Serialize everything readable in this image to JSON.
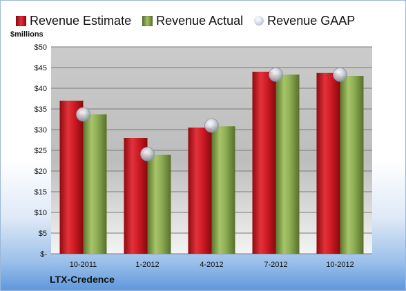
{
  "legend": {
    "estimate": "Revenue Estimate",
    "actual": "Revenue Actual",
    "gaap": "Revenue GAAP"
  },
  "unit_label": "$millions",
  "company_label": "LTX-Credence",
  "colors": {
    "estimate": "#c0101a",
    "actual": "#7d9a43",
    "gaap": "#c8cdd6"
  },
  "chart_data": {
    "type": "bar",
    "categories": [
      "10-2011",
      "1-2012",
      "4-2012",
      "7-2012",
      "10-2012"
    ],
    "series": [
      {
        "name": "Revenue Estimate",
        "values": [
          37.0,
          28.0,
          30.5,
          44.0,
          43.7
        ]
      },
      {
        "name": "Revenue Actual",
        "values": [
          33.7,
          23.9,
          30.8,
          43.3,
          43.0
        ]
      },
      {
        "name": "Revenue GAAP",
        "values": [
          33.7,
          24.1,
          31.0,
          43.3,
          43.3
        ]
      }
    ],
    "yticks": [
      "$-",
      "$5",
      "$10",
      "$15",
      "$20",
      "$25",
      "$30",
      "$35",
      "$40",
      "$45",
      "$50"
    ],
    "ylim": [
      0,
      50
    ],
    "ylabel": "$millions",
    "title": "",
    "xlabel": "",
    "grid": true,
    "legend_position": "top"
  }
}
